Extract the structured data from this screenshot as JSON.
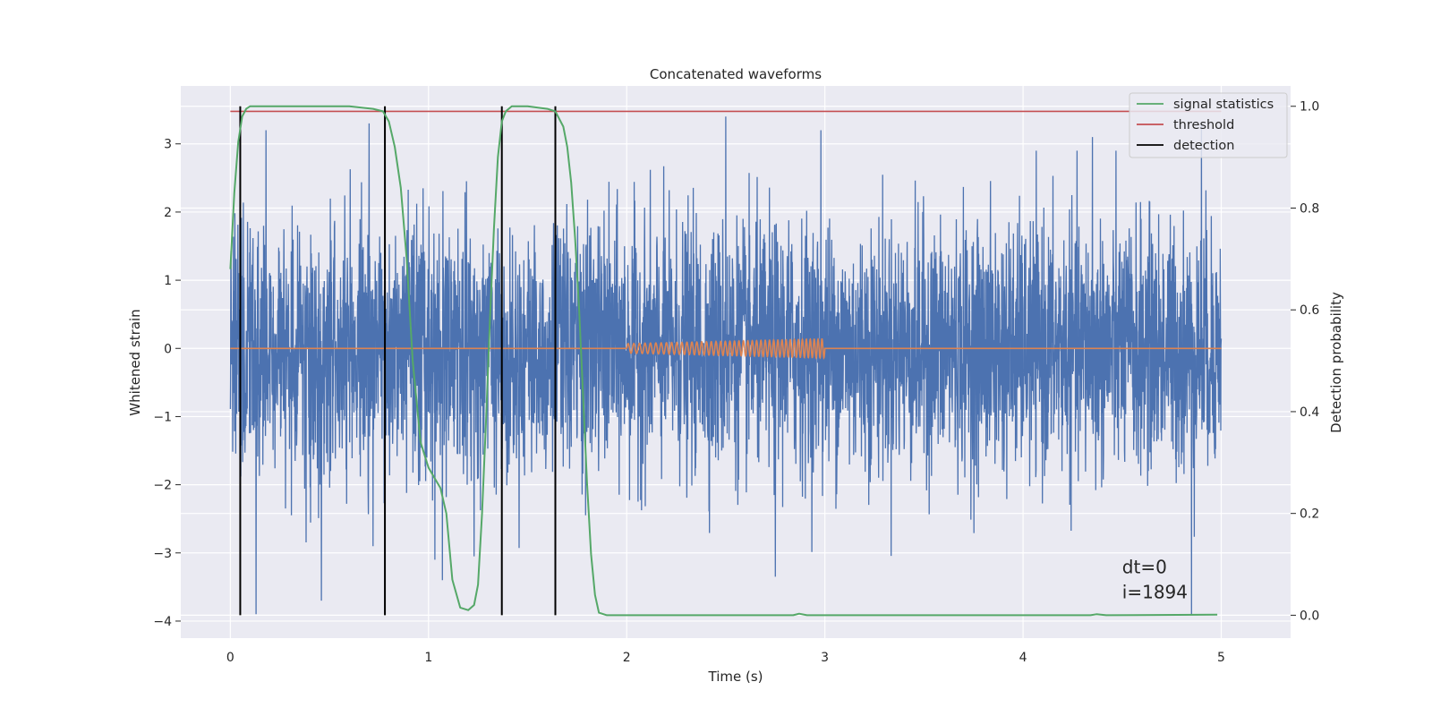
{
  "chart_data": {
    "type": "line",
    "title": "Concatenated waveforms",
    "xlabel": "Time (s)",
    "ylabel": "Whitened strain",
    "ylabel_right": "Detection probability",
    "xlim": [
      -0.25,
      5.35
    ],
    "ylim": [
      -4.25,
      3.85
    ],
    "ylim_right": [
      -0.045,
      1.04
    ],
    "x_ticks": [
      0,
      1,
      2,
      3,
      4,
      5
    ],
    "x_tick_labels": [
      "0",
      "1",
      "2",
      "3",
      "4",
      "5"
    ],
    "y_ticks": [
      -4,
      -3,
      -2,
      -1,
      0,
      1,
      2,
      3
    ],
    "y_tick_labels": [
      "−4",
      "−3",
      "−2",
      "−1",
      "0",
      "1",
      "2",
      "3"
    ],
    "y_right_ticks": [
      0.0,
      0.2,
      0.4,
      0.6,
      0.8,
      1.0
    ],
    "y_right_tick_labels": [
      "0.0",
      "0.2",
      "0.4",
      "0.6",
      "0.8",
      "1.0"
    ],
    "grid": true,
    "legend_position": "top-right",
    "legend": [
      "signal statistics",
      "threshold",
      "detection"
    ],
    "annotation_lines": [
      "dt=0",
      "i=1894"
    ],
    "annotation_position": [
      4.5,
      -3.3
    ],
    "series": [
      {
        "name": "",
        "color": "#4c72b0",
        "axis": "left",
        "kind": "whitened noise, approx. std 0.9, peaks to +3.4 / -3.9, x from 0 to 5 s",
        "x_range": [
          0,
          5
        ],
        "spikes": [
          [
            0.13,
            -3.9
          ],
          [
            0.18,
            3.2
          ],
          [
            0.46,
            -3.7
          ],
          [
            0.7,
            3.3
          ],
          [
            0.72,
            -2.9
          ],
          [
            1.07,
            -3.4
          ],
          [
            1.23,
            -3.05
          ],
          [
            2.5,
            3.4
          ],
          [
            2.75,
            -3.35
          ],
          [
            2.98,
            3.2
          ],
          [
            4.35,
            3.1
          ],
          [
            4.85,
            -3.9
          ],
          [
            4.9,
            3.3
          ]
        ]
      },
      {
        "name": "",
        "color": "#dd8452",
        "axis": "left",
        "kind": "injected chirp, zero outside 2–3 s, amplitude rising 0.07 to 0.14",
        "x": [
          0,
          2,
          3,
          5
        ],
        "chirp": {
          "t_start": 2.0,
          "t_end": 3.0,
          "amp_start": 0.07,
          "amp_end": 0.14,
          "cycles": 43
        }
      },
      {
        "name": "signal statistics",
        "color": "#55a868",
        "axis": "right",
        "x": [
          0.0,
          0.02,
          0.04,
          0.06,
          0.08,
          0.1,
          0.3,
          0.6,
          0.72,
          0.77,
          0.8,
          0.83,
          0.86,
          0.89,
          0.92,
          0.96,
          1.0,
          1.03,
          1.06,
          1.09,
          1.12,
          1.16,
          1.2,
          1.23,
          1.25,
          1.27,
          1.29,
          1.31,
          1.33,
          1.35,
          1.37,
          1.39,
          1.42,
          1.46,
          1.5,
          1.6,
          1.64,
          1.68,
          1.7,
          1.72,
          1.74,
          1.76,
          1.78,
          1.8,
          1.82,
          1.84,
          1.86,
          1.9,
          2.4,
          2.84,
          2.87,
          2.91,
          3.2,
          4.2,
          4.34,
          4.37,
          4.42,
          4.98
        ],
        "values": [
          0.68,
          0.83,
          0.93,
          0.98,
          0.995,
          1.0,
          1.0,
          1.0,
          0.995,
          0.99,
          0.97,
          0.92,
          0.84,
          0.7,
          0.5,
          0.34,
          0.29,
          0.27,
          0.25,
          0.2,
          0.07,
          0.015,
          0.01,
          0.02,
          0.06,
          0.2,
          0.38,
          0.58,
          0.76,
          0.9,
          0.97,
          0.99,
          1.0,
          1.0,
          1.0,
          0.995,
          0.99,
          0.96,
          0.92,
          0.85,
          0.74,
          0.6,
          0.43,
          0.26,
          0.12,
          0.04,
          0.005,
          0.0,
          0.0,
          0.0,
          0.003,
          0.0,
          0.0,
          0.0,
          0.0,
          0.002,
          0.0,
          0.001
        ]
      },
      {
        "name": "threshold",
        "color": "#c44e52",
        "axis": "right",
        "x": [
          0.0,
          5.0
        ],
        "values": [
          0.99,
          0.99
        ]
      },
      {
        "name": "detection",
        "color": "#000000",
        "axis": "right",
        "kind": "vertical lines from 0 to 1",
        "x": [
          0.05,
          0.78,
          1.37,
          1.64
        ]
      }
    ]
  }
}
